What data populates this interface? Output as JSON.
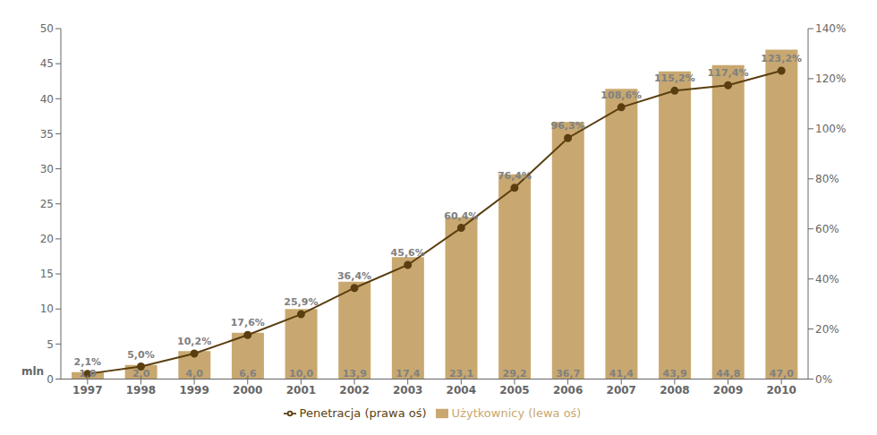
{
  "chart_data": {
    "type": "bar",
    "categories": [
      "1997",
      "1998",
      "1999",
      "2000",
      "2001",
      "2002",
      "2003",
      "2004",
      "2005",
      "2006",
      "2007",
      "2008",
      "2009",
      "2010"
    ],
    "series": [
      {
        "name": "Użytkownicy (lewa oś)",
        "type": "bar",
        "color": "#C8A870",
        "values": [
          1.0,
          2.0,
          4.0,
          6.6,
          10.0,
          13.9,
          17.4,
          23.1,
          29.2,
          36.7,
          41.4,
          43.9,
          44.8,
          47.0
        ],
        "value_labels": [
          "1,0",
          "2,0",
          "4,0",
          "6,6",
          "10,0",
          "13,9",
          "17,4",
          "23,1",
          "29,2",
          "36,7",
          "41,4",
          "43,9",
          "44,8",
          "47,0"
        ]
      },
      {
        "name": "Penetracja (prawa oś)",
        "type": "line",
        "axis": "y2",
        "color": "#5A3E10",
        "marker": "circle",
        "values": [
          2.1,
          5.0,
          10.2,
          17.6,
          25.9,
          36.4,
          45.6,
          60.4,
          76.4,
          96.3,
          108.6,
          115.2,
          117.4,
          123.2
        ],
        "value_labels": [
          "2,1%",
          "5,0%",
          "10,2%",
          "17,6%",
          "25,9%",
          "36,4%",
          "45,6%",
          "60,4%",
          "76,4%",
          "96,3%",
          "108,6%",
          "115,2%",
          "117,4%",
          "123,2%"
        ]
      }
    ],
    "ylim": [
      0,
      50
    ],
    "yticks": [
      0,
      5,
      10,
      15,
      20,
      25,
      30,
      35,
      40,
      45,
      50
    ],
    "y2lim": [
      0,
      140
    ],
    "y2ticks": [
      {
        "value": 0,
        "label": "0%"
      },
      {
        "value": 20,
        "label": "20%"
      },
      {
        "value": 40,
        "label": "40%"
      },
      {
        "value": 60,
        "label": "60%"
      },
      {
        "value": 80,
        "label": "80%"
      },
      {
        "value": 100,
        "label": "100%"
      },
      {
        "value": 120,
        "label": "120%"
      },
      {
        "value": 140,
        "label": "140%"
      }
    ],
    "annotations": [
      "mln"
    ],
    "grid": false,
    "legend": "bottom",
    "data_labels": true
  }
}
